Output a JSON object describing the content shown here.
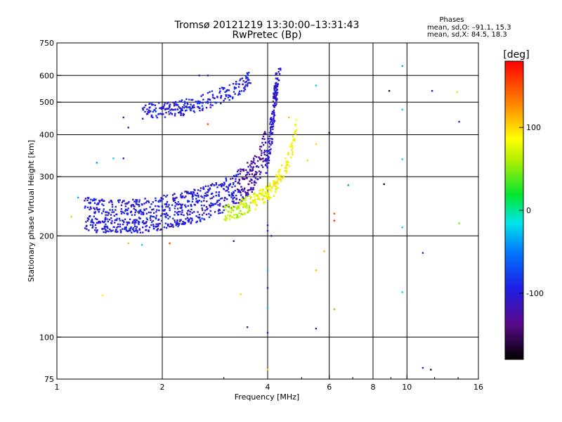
{
  "title_line1": "Tromsø 20121219 13:30:00–13:31:43",
  "title_line2": "RwPretec (Bp)",
  "phases": {
    "heading": "Phases",
    "line_o": "mean, sd,O: –91.1, 15.3",
    "line_x": "mean, sd,X: 84.5, 18.3"
  },
  "colorbar": {
    "label": "deg",
    "ticks": [
      "100",
      "0",
      "-100"
    ],
    "tick_values": [
      100,
      0,
      -100
    ],
    "range": [
      -180,
      180
    ]
  },
  "chart_data": {
    "type": "scatter",
    "xlabel": "Frequency [MHz]",
    "ylabel": "Stationary phase Virtual Height [km]",
    "xscale": "log",
    "yscale": "log",
    "xlim": [
      1,
      16
    ],
    "ylim": [
      75,
      750
    ],
    "xticks": [
      1,
      2,
      4,
      6,
      8,
      10,
      16
    ],
    "xtick_labels": [
      "1",
      "2",
      "4",
      "6",
      "8",
      "10",
      "16"
    ],
    "yticks": [
      75,
      100,
      200,
      300,
      400,
      500,
      600,
      750
    ],
    "ytick_labels": [
      "75",
      "100",
      "200",
      "300",
      "400",
      "500",
      "600",
      "750"
    ],
    "grid": true,
    "o_mode_trace": [
      [
        1.2,
        212
      ],
      [
        1.35,
        209
      ],
      [
        1.5,
        208
      ],
      [
        1.7,
        209
      ],
      [
        1.9,
        212
      ],
      [
        2.1,
        216
      ],
      [
        2.4,
        222
      ],
      [
        2.7,
        230
      ],
      [
        3.0,
        240
      ],
      [
        3.3,
        255
      ],
      [
        3.6,
        275
      ],
      [
        3.8,
        300
      ],
      [
        3.95,
        340
      ],
      [
        4.05,
        400
      ],
      [
        4.15,
        470
      ],
      [
        4.25,
        550
      ],
      [
        4.3,
        620
      ]
    ],
    "o_mode_upper_trace": [
      [
        1.75,
        455
      ],
      [
        1.9,
        460
      ],
      [
        2.05,
        462
      ],
      [
        2.2,
        465
      ],
      [
        2.5,
        480
      ],
      [
        2.8,
        500
      ],
      [
        3.1,
        520
      ],
      [
        3.4,
        550
      ],
      [
        3.6,
        580
      ]
    ],
    "x_mode_trace": [
      [
        3.0,
        230
      ],
      [
        3.3,
        235
      ],
      [
        3.6,
        245
      ],
      [
        3.9,
        255
      ],
      [
        4.15,
        270
      ],
      [
        4.4,
        300
      ],
      [
        4.6,
        330
      ],
      [
        4.75,
        370
      ],
      [
        4.85,
        420
      ]
    ],
    "scatter_points": [
      {
        "x": 2.55,
        "y": 600,
        "phase": -100
      },
      {
        "x": 2.7,
        "y": 600,
        "phase": -110
      },
      {
        "x": 1.55,
        "y": 450,
        "phase": -110
      },
      {
        "x": 1.6,
        "y": 420,
        "phase": -105
      },
      {
        "x": 2.7,
        "y": 430,
        "phase": 150
      },
      {
        "x": 1.3,
        "y": 330,
        "phase": -40
      },
      {
        "x": 1.45,
        "y": 340,
        "phase": -20
      },
      {
        "x": 1.55,
        "y": 340,
        "phase": -110
      },
      {
        "x": 1.1,
        "y": 228,
        "phase": 60
      },
      {
        "x": 1.15,
        "y": 260,
        "phase": -30
      },
      {
        "x": 1.6,
        "y": 190,
        "phase": 110
      },
      {
        "x": 1.75,
        "y": 188,
        "phase": -20
      },
      {
        "x": 2.1,
        "y": 190,
        "phase": 150
      },
      {
        "x": 1.35,
        "y": 133,
        "phase": 90
      },
      {
        "x": 3.2,
        "y": 193,
        "phase": -110
      },
      {
        "x": 3.35,
        "y": 134,
        "phase": 100
      },
      {
        "x": 3.5,
        "y": 107,
        "phase": -120
      },
      {
        "x": 4.0,
        "y": 215,
        "phase": -110
      },
      {
        "x": 4.0,
        "y": 207,
        "phase": -100
      },
      {
        "x": 4.1,
        "y": 200,
        "phase": -120
      },
      {
        "x": 4.0,
        "y": 158,
        "phase": -30
      },
      {
        "x": 4.0,
        "y": 140,
        "phase": -90
      },
      {
        "x": 4.0,
        "y": 122,
        "phase": -30
      },
      {
        "x": 4.0,
        "y": 103,
        "phase": -100
      },
      {
        "x": 4.0,
        "y": 80,
        "phase": 100
      },
      {
        "x": 4.6,
        "y": 450,
        "phase": 110
      },
      {
        "x": 5.5,
        "y": 560,
        "phase": -20
      },
      {
        "x": 5.5,
        "y": 375,
        "phase": 100
      },
      {
        "x": 5.2,
        "y": 335,
        "phase": 60
      },
      {
        "x": 5.5,
        "y": 158,
        "phase": 110
      },
      {
        "x": 5.5,
        "y": 106,
        "phase": -110
      },
      {
        "x": 5.8,
        "y": 180,
        "phase": 110
      },
      {
        "x": 6.0,
        "y": 405,
        "phase": -160
      },
      {
        "x": 6.2,
        "y": 233,
        "phase": 150
      },
      {
        "x": 6.2,
        "y": 222,
        "phase": 160
      },
      {
        "x": 6.2,
        "y": 121,
        "phase": 120
      },
      {
        "x": 6.8,
        "y": 283,
        "phase": -40
      },
      {
        "x": 8.6,
        "y": 285,
        "phase": -160
      },
      {
        "x": 8.9,
        "y": 540,
        "phase": -160
      },
      {
        "x": 9.7,
        "y": 640,
        "phase": -30
      },
      {
        "x": 9.7,
        "y": 475,
        "phase": -20
      },
      {
        "x": 9.7,
        "y": 338,
        "phase": -20
      },
      {
        "x": 9.7,
        "y": 212,
        "phase": -20
      },
      {
        "x": 9.7,
        "y": 136,
        "phase": -20
      },
      {
        "x": 11.1,
        "y": 178,
        "phase": -110
      },
      {
        "x": 11.1,
        "y": 81,
        "phase": -100
      },
      {
        "x": 11.7,
        "y": 80,
        "phase": -160
      },
      {
        "x": 11.8,
        "y": 540,
        "phase": -110
      },
      {
        "x": 13.9,
        "y": 535,
        "phase": 70
      },
      {
        "x": 14.1,
        "y": 437,
        "phase": -110
      },
      {
        "x": 14.1,
        "y": 218,
        "phase": 50
      }
    ]
  }
}
